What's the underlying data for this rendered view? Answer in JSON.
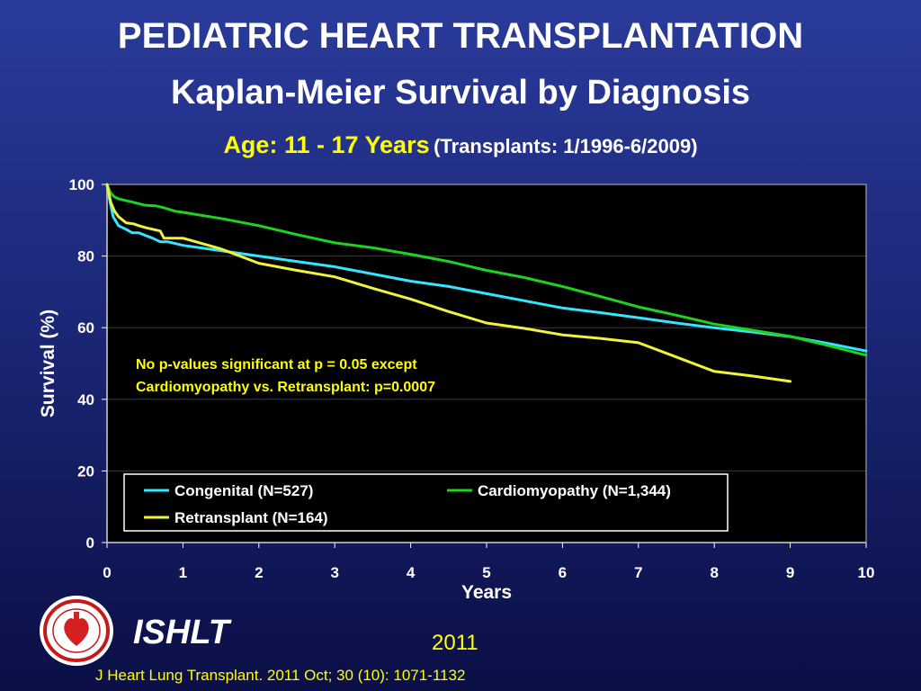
{
  "header": {
    "title": "PEDIATRIC HEART TRANSPLANTATION",
    "subtitle": "Kaplan-Meier Survival by Diagnosis",
    "age_label": "Age: 11 - 17 Years",
    "period_label": "(Transplants: 1/1996-6/2009)"
  },
  "footer": {
    "org": "ISHLT",
    "year": "2011",
    "citation": "J Heart Lung Transplant. 2011 Oct; 30 (10): 1071-1132"
  },
  "colors": {
    "plot_background": "#000000",
    "congenital": "#33e6ff",
    "cardiomyopathy": "#1ed31e",
    "retransplant": "#f2f23a",
    "annotation": "#ffff00"
  },
  "chart_data": {
    "type": "line",
    "xlabel": "Years",
    "ylabel": "Survival (%)",
    "xlim": [
      0,
      10
    ],
    "ylim": [
      0,
      100
    ],
    "xticks": [
      0,
      1,
      2,
      3,
      4,
      5,
      6,
      7,
      8,
      9,
      10
    ],
    "yticks": [
      0,
      20,
      40,
      60,
      80,
      100
    ],
    "grid": "horizontal",
    "legend_position": "bottom",
    "annotation": [
      "No p-values significant at p = 0.05 except",
      "Cardiomyopathy vs. Retransplant: p=0.0007"
    ],
    "series": [
      {
        "name": "Congenital (N=527)",
        "color": "#33e6ff",
        "x": [
          0,
          0.04,
          0.08,
          0.15,
          0.25,
          0.33,
          0.42,
          0.5,
          0.6,
          0.7,
          0.8,
          0.9,
          1.0,
          1.5,
          2,
          2.5,
          3,
          3.5,
          4,
          4.5,
          5,
          5.5,
          6,
          6.5,
          7,
          7.5,
          8,
          8.5,
          9,
          9.5,
          10
        ],
        "y": [
          100,
          95,
          91,
          88.5,
          87.5,
          86.5,
          86.5,
          85.8,
          85,
          84,
          84,
          83.5,
          83,
          81.5,
          80,
          78.5,
          77,
          75,
          73,
          71.5,
          69.5,
          67.5,
          65.5,
          64.2,
          62.8,
          61.3,
          60,
          58.8,
          57.5,
          55.6,
          53.5
        ]
      },
      {
        "name": "Cardiomyopathy (N=1,344)",
        "color": "#1ed31e",
        "x": [
          0,
          0.05,
          0.1,
          0.15,
          0.25,
          0.35,
          0.5,
          0.65,
          0.75,
          0.9,
          1.0,
          1.5,
          2,
          2.5,
          3,
          3.5,
          4,
          4.5,
          5,
          5.5,
          6,
          6.5,
          7,
          7.5,
          8,
          8.5,
          9,
          9.5,
          10
        ],
        "y": [
          100,
          97.5,
          96.5,
          96,
          95.5,
          95,
          94.2,
          94,
          93.5,
          92.5,
          92.2,
          90.5,
          88.5,
          86,
          83.7,
          82.3,
          80.5,
          78.5,
          76,
          74,
          71.5,
          68.7,
          65.8,
          63.5,
          61,
          59.3,
          57.6,
          55,
          52.3
        ]
      },
      {
        "name": "Retransplant (N=164)",
        "color": "#f2f23a",
        "x": [
          0,
          0.05,
          0.1,
          0.15,
          0.25,
          0.35,
          0.42,
          0.5,
          0.6,
          0.7,
          0.75,
          1.0,
          1.5,
          2,
          2.5,
          3,
          3.5,
          4,
          4.5,
          5,
          5.5,
          6,
          6.5,
          7,
          7.5,
          8,
          8.5,
          9
        ],
        "y": [
          100,
          95,
          92.5,
          91,
          89.3,
          89,
          88.5,
          88,
          87.5,
          87,
          85,
          85,
          82,
          78,
          76,
          74.2,
          71,
          68,
          64.5,
          61.3,
          59.8,
          58,
          57,
          55.8,
          51.8,
          47.8,
          46.5,
          45
        ]
      }
    ]
  }
}
